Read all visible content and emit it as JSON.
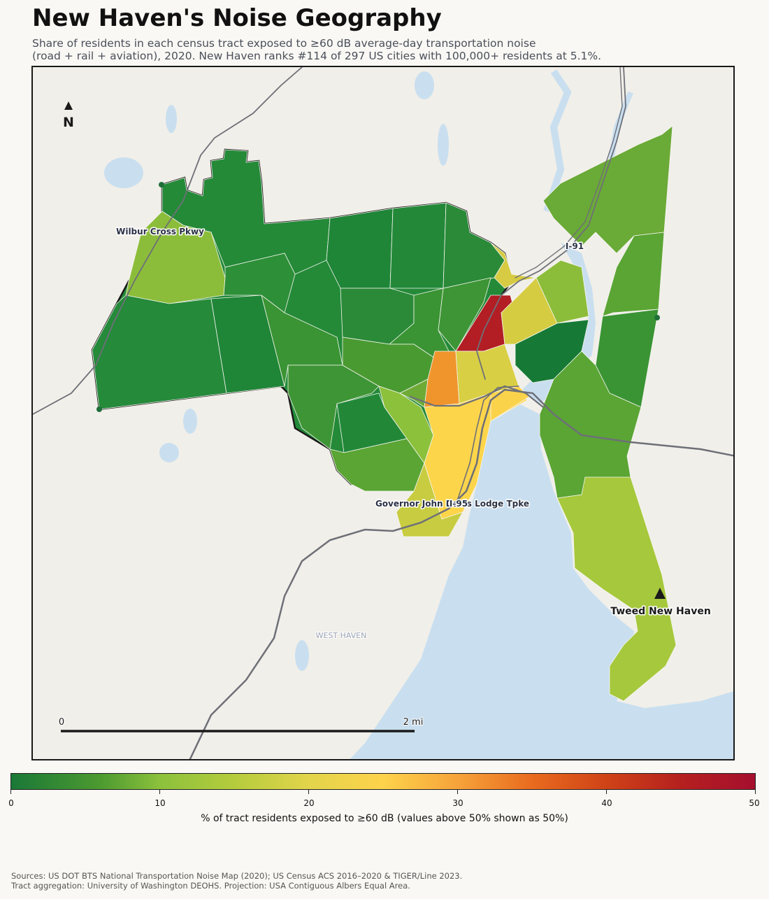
{
  "title": "New Haven's Noise Geography",
  "subtitle_line1": "Share of residents in each census tract exposed to ≥60 dB average-day transportation noise",
  "subtitle_line2": "(road + rail + aviation), 2020. New Haven ranks #114 of 297 US cities with 100,000+ residents at 5.1%.",
  "map": {
    "north_label": "N",
    "road_labels": {
      "wilbur_cross": "Wilbur Cross Pkwy",
      "i91": "I-91",
      "i95": "I-95",
      "governor_lodge": "Governor John Davis Lodge Tpke"
    },
    "airport_label": "Tweed New Haven",
    "place_label": "WEST HAVEN",
    "scalebar": {
      "start": "0",
      "end": "2 mi"
    },
    "colors": {
      "water": "#c9dff0",
      "land": "#f1efe9",
      "road": "#6e7078",
      "outline": "#1a1a1a"
    }
  },
  "colorbar": {
    "min": 0,
    "max": 50,
    "ticks": [
      "0",
      "10",
      "20",
      "30",
      "40",
      "50"
    ],
    "title": "% of tract residents exposed to ≥60 dB (values above 50% shown as 50%)",
    "colors": [
      "#1a7837",
      "#8cc13c",
      "#e2d44b",
      "#fdd34b",
      "#e96b1f",
      "#a50f2e"
    ]
  },
  "sources_line1": "Sources: US DOT BTS National Transportation Noise Map (2020); US Census ACS 2016–2020 & TIGER/Line 2023.",
  "sources_line2": "Tract aggregation: University of Washington DEOHS. Projection: USA Contiguous Albers Equal Area."
}
